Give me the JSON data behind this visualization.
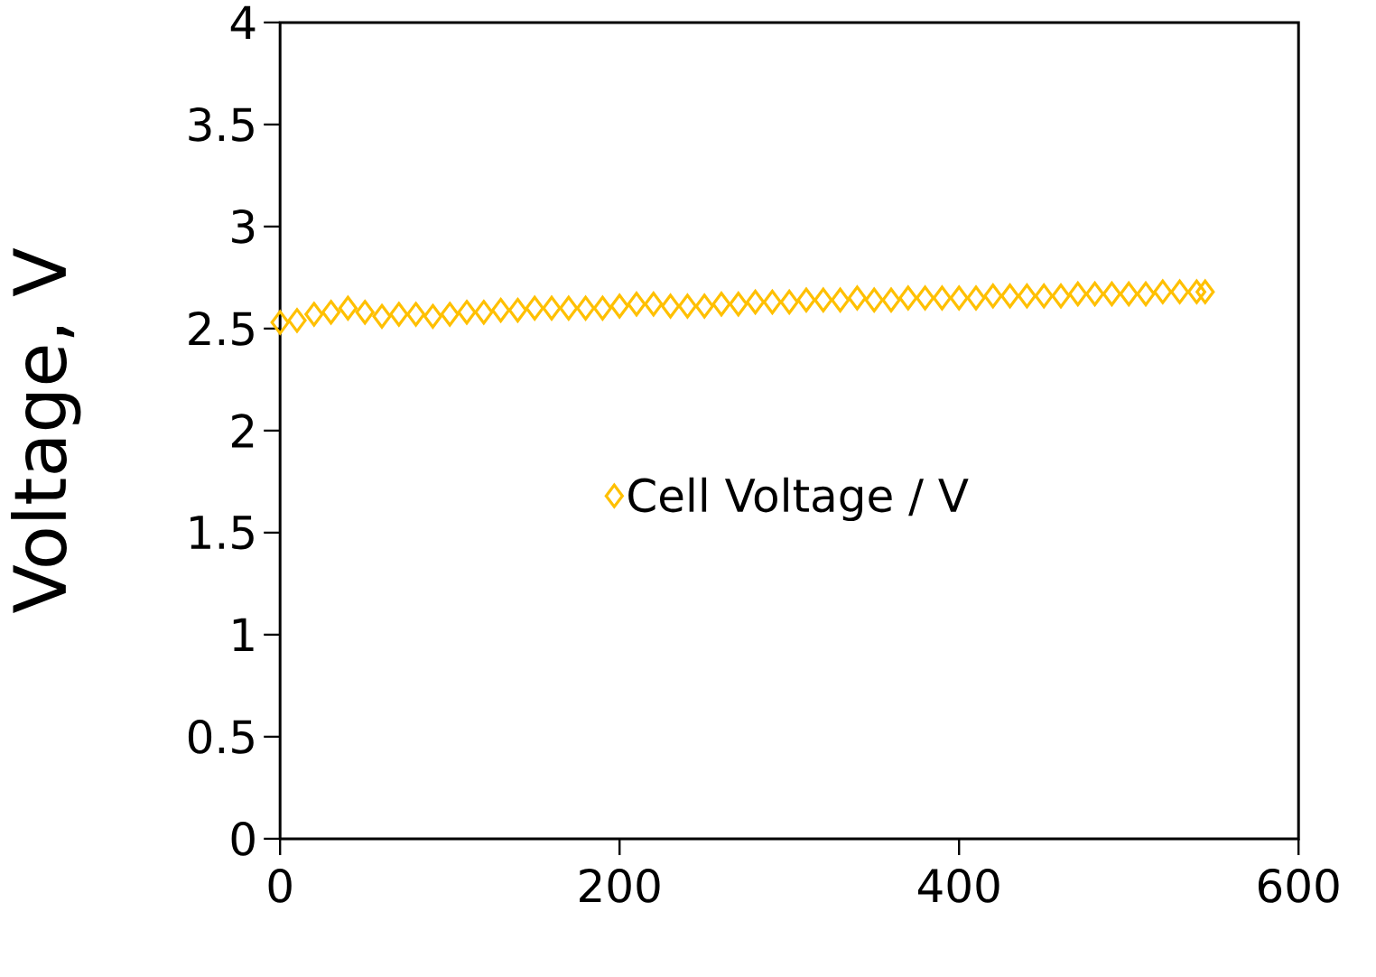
{
  "chart_data": {
    "type": "scatter",
    "ylabel": "Voltage, V",
    "x": [
      0,
      10,
      20,
      30,
      40,
      50,
      60,
      70,
      80,
      90,
      100,
      110,
      120,
      130,
      140,
      150,
      160,
      170,
      180,
      190,
      200,
      210,
      220,
      230,
      240,
      250,
      260,
      270,
      280,
      290,
      300,
      310,
      320,
      330,
      340,
      350,
      360,
      370,
      380,
      390,
      400,
      410,
      420,
      430,
      440,
      450,
      460,
      470,
      480,
      490,
      500,
      510,
      520,
      530,
      540,
      545
    ],
    "series": [
      {
        "name": "Cell Voltage / V",
        "color": "#ffc000",
        "values": [
          2.53,
          2.54,
          2.57,
          2.58,
          2.6,
          2.58,
          2.56,
          2.57,
          2.57,
          2.56,
          2.57,
          2.58,
          2.58,
          2.59,
          2.59,
          2.6,
          2.6,
          2.6,
          2.6,
          2.6,
          2.61,
          2.62,
          2.62,
          2.61,
          2.61,
          2.61,
          2.62,
          2.62,
          2.63,
          2.63,
          2.63,
          2.64,
          2.64,
          2.64,
          2.65,
          2.64,
          2.64,
          2.65,
          2.65,
          2.65,
          2.65,
          2.65,
          2.66,
          2.66,
          2.66,
          2.66,
          2.66,
          2.67,
          2.67,
          2.67,
          2.67,
          2.67,
          2.68,
          2.68,
          2.68,
          2.68
        ]
      }
    ],
    "xlim": [
      0,
      600
    ],
    "ylim": [
      0,
      4
    ],
    "xticks": [
      0,
      200,
      400,
      600
    ],
    "yticks": [
      0,
      0.5,
      1,
      1.5,
      2,
      2.5,
      3,
      3.5,
      4
    ],
    "marker": "diamond",
    "legend": "center",
    "grid": false
  }
}
